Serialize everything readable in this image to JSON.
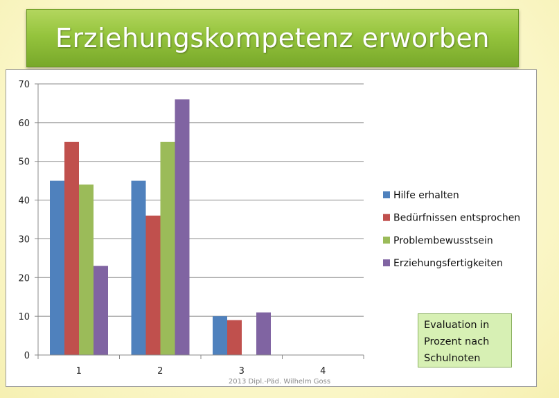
{
  "title": "Erziehungskompetenz erworben",
  "note": "Evaluation in\nProzent nach\nSchulnoten",
  "footer": "2013 Dipl.-Päd. Wilhelm Goss",
  "chart_data": {
    "type": "bar",
    "categories": [
      "1",
      "2",
      "3",
      "4"
    ],
    "series": [
      {
        "name": "Hilfe erhalten",
        "values": [
          45,
          45,
          10,
          0
        ],
        "color": "#4f81bd"
      },
      {
        "name": "Bedürfnissen entsprochen",
        "values": [
          55,
          36,
          9,
          0
        ],
        "color": "#c0504d"
      },
      {
        "name": "Problembewusstsein",
        "values": [
          44,
          55,
          0,
          0
        ],
        "color": "#9bbb59"
      },
      {
        "name": "Erziehungsfertigkeiten",
        "values": [
          23,
          66,
          11,
          0
        ],
        "color": "#8064a2"
      }
    ],
    "ylim": [
      0,
      70
    ],
    "yticks": [
      0,
      10,
      20,
      30,
      40,
      50,
      60,
      70
    ],
    "grid": true,
    "legend": "right"
  }
}
